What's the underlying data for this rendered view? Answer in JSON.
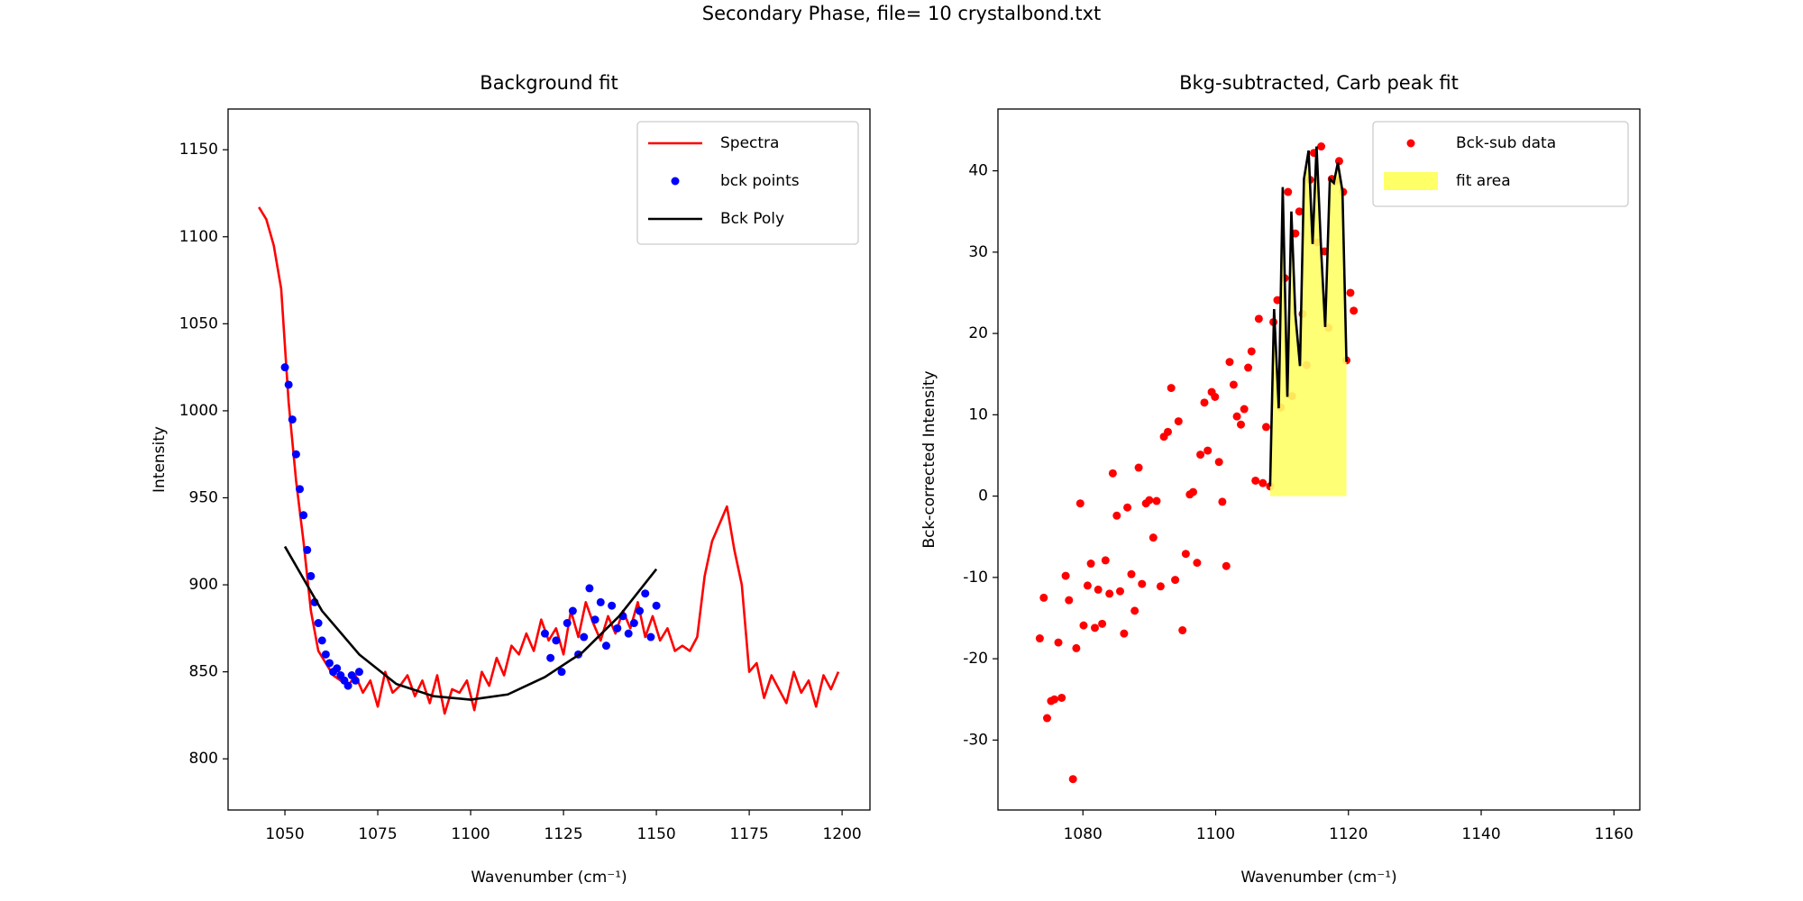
{
  "title": "Secondary Phase, file= 10 crystalbond.txt",
  "chart_data": [
    {
      "type": "line",
      "title": "Background fit",
      "xlabel": "Wavenumber (cm⁻¹)",
      "ylabel": "Intensity",
      "xlim": [
        1034.7,
        1207.5
      ],
      "ylim": [
        770.6,
        1173.4
      ],
      "xticks": [
        1050,
        1075,
        1100,
        1125,
        1150,
        1175,
        1200
      ],
      "yticks": [
        800,
        850,
        900,
        950,
        1000,
        1050,
        1100,
        1150
      ],
      "legend": "upper right",
      "series": [
        {
          "name": "Spectra",
          "type": "line",
          "color": "#ff0000",
          "x": [
            1043,
            1045,
            1047,
            1049,
            1051,
            1053,
            1055,
            1057,
            1059,
            1061,
            1063,
            1065,
            1067,
            1069,
            1071,
            1073,
            1075,
            1077,
            1079,
            1081,
            1083,
            1085,
            1087,
            1089,
            1091,
            1093,
            1095,
            1097,
            1099,
            1101,
            1103,
            1105,
            1107,
            1109,
            1111,
            1113,
            1115,
            1117,
            1119,
            1121,
            1123,
            1125,
            1127,
            1129,
            1131,
            1133,
            1135,
            1137,
            1139,
            1141,
            1143,
            1145,
            1147,
            1149,
            1151,
            1153,
            1155,
            1157,
            1159,
            1161,
            1163,
            1165,
            1167,
            1169,
            1171,
            1173,
            1175,
            1177,
            1179,
            1181,
            1183,
            1185,
            1187,
            1189,
            1191,
            1193,
            1195,
            1197,
            1199
          ],
          "values": [
            1117,
            1110,
            1095,
            1070,
            1005,
            960,
            925,
            885,
            862,
            855,
            848,
            845,
            842,
            848,
            838,
            845,
            830,
            850,
            838,
            842,
            848,
            836,
            845,
            832,
            848,
            826,
            840,
            838,
            845,
            828,
            850,
            842,
            858,
            848,
            865,
            860,
            872,
            862,
            880,
            868,
            875,
            860,
            885,
            870,
            890,
            878,
            868,
            882,
            872,
            885,
            875,
            890,
            870,
            882,
            868,
            875,
            862,
            865,
            862,
            870,
            905,
            925,
            935,
            945,
            920,
            900,
            850,
            855,
            835,
            848,
            840,
            832,
            850,
            838,
            845,
            830,
            848,
            840,
            850
          ]
        },
        {
          "name": "bck points",
          "type": "scatter",
          "color": "#0000ff",
          "x": [
            1050,
            1051,
            1052,
            1053,
            1054,
            1055,
            1056,
            1057,
            1058,
            1059,
            1060,
            1061,
            1062,
            1063,
            1064,
            1065,
            1066,
            1067,
            1068,
            1069,
            1070,
            1120,
            1121.5,
            1123,
            1124.5,
            1126,
            1127.5,
            1129,
            1130.5,
            1132,
            1133.5,
            1135,
            1136.5,
            1138,
            1139.5,
            1141,
            1142.5,
            1144,
            1145.5,
            1147,
            1148.5,
            1150
          ],
          "values": [
            1025,
            1015,
            995,
            975,
            955,
            940,
            920,
            905,
            890,
            878,
            868,
            860,
            855,
            850,
            852,
            848,
            845,
            842,
            848,
            845,
            850,
            872,
            858,
            868,
            850,
            878,
            885,
            860,
            870,
            898,
            880,
            890,
            865,
            888,
            875,
            882,
            872,
            878,
            885,
            895,
            870,
            888
          ]
        },
        {
          "name": "Bck Poly",
          "type": "line",
          "color": "#000000",
          "x": [
            1050,
            1060,
            1070,
            1080,
            1090,
            1100,
            1110,
            1120,
            1130,
            1140,
            1150
          ],
          "values": [
            922,
            885,
            860,
            843,
            836,
            834,
            837,
            847,
            861,
            882,
            909
          ]
        }
      ]
    },
    {
      "type": "scatter",
      "title": "Bkg-subtracted, Carb peak fit",
      "xlabel": "Wavenumber (cm⁻¹)",
      "ylabel": "Bck-corrected Intensity",
      "xlim": [
        1067.2,
        1163.9
      ],
      "ylim": [
        -38.6,
        47.6
      ],
      "xticks": [
        1080,
        1100,
        1120,
        1140,
        1160
      ],
      "yticks": [
        -30,
        -20,
        -10,
        0,
        10,
        20,
        30,
        40
      ],
      "legend": "upper right",
      "series": [
        {
          "name": "Bck-sub data",
          "type": "scatter",
          "color": "#ff0000",
          "x": [
            1073.5,
            1074.1,
            1074.6,
            1075.2,
            1075.7,
            1076.3,
            1076.8,
            1077.4,
            1077.9,
            1078.5,
            1079.0,
            1079.6,
            1080.1,
            1080.7,
            1081.2,
            1081.8,
            1082.3,
            1082.9,
            1083.4,
            1084.0,
            1084.5,
            1085.1,
            1085.6,
            1086.2,
            1086.7,
            1087.3,
            1087.8,
            1088.4,
            1088.9,
            1089.5,
            1090.0,
            1090.6,
            1091.1,
            1091.7,
            1092.2,
            1092.8,
            1093.3,
            1093.9,
            1094.4,
            1095.0,
            1095.5,
            1096.1,
            1096.6,
            1097.2,
            1097.7,
            1098.3,
            1098.8,
            1099.4,
            1099.9,
            1100.5,
            1101.0,
            1101.6,
            1102.1,
            1102.7,
            1103.2,
            1103.8,
            1104.3,
            1104.9,
            1105.4,
            1106.0,
            1106.5,
            1107.1,
            1107.6,
            1108.2,
            1108.7,
            1109.3,
            1109.8,
            1110.4,
            1110.9,
            1111.5,
            1112.0,
            1112.6,
            1113.1,
            1113.7,
            1114.2,
            1114.8,
            1115.3,
            1115.9,
            1116.4,
            1117.0,
            1117.5,
            1118.1,
            1118.6,
            1119.2,
            1119.7,
            1120.3,
            1120.8
          ],
          "values": [
            -17.5,
            -12.5,
            -27.3,
            -25.2,
            -25,
            -18,
            -24.8,
            -9.8,
            -12.8,
            -34.8,
            -18.7,
            -0.9,
            -15.9,
            -11,
            -8.3,
            -16.2,
            -11.5,
            -15.7,
            -7.9,
            -12,
            2.8,
            -2.4,
            -11.7,
            -16.9,
            -1.4,
            -9.6,
            -14.1,
            3.5,
            -10.8,
            -0.9,
            -0.5,
            -5.1,
            -0.6,
            -11.1,
            7.3,
            7.9,
            13.3,
            -10.3,
            9.2,
            -16.5,
            -7.1,
            0.2,
            0.5,
            -8.2,
            5.1,
            11.5,
            5.6,
            12.8,
            12.2,
            4.2,
            -0.7,
            -8.6,
            16.5,
            13.7,
            9.8,
            8.8,
            10.7,
            15.8,
            17.8,
            1.9,
            21.8,
            1.6,
            8.5,
            1.2,
            21.4,
            24.1,
            10.9,
            26.8,
            37.4,
            12.3,
            32.3,
            35,
            22.4,
            16.1,
            38.9,
            42.2,
            31.2,
            43,
            30.1,
            20.7,
            39,
            38.8,
            41.2,
            37.4,
            16.7,
            25,
            22.8
          ]
        },
        {
          "name": "fit area",
          "type": "area",
          "color": "#ffff66",
          "line_color": "#000000",
          "x": [
            1108.2,
            1108.8,
            1109.5,
            1110.1,
            1110.8,
            1111.4,
            1112.0,
            1112.7,
            1113.3,
            1114.0,
            1114.6,
            1115.2,
            1115.9,
            1116.5,
            1117.2,
            1117.8,
            1118.4,
            1119.1,
            1119.7
          ],
          "values": [
            1.2,
            23,
            10.8,
            38,
            12.2,
            35,
            22.4,
            16,
            39,
            42.5,
            31,
            43,
            30,
            20.8,
            39,
            38.5,
            41,
            37.5,
            16.5
          ]
        }
      ]
    }
  ]
}
